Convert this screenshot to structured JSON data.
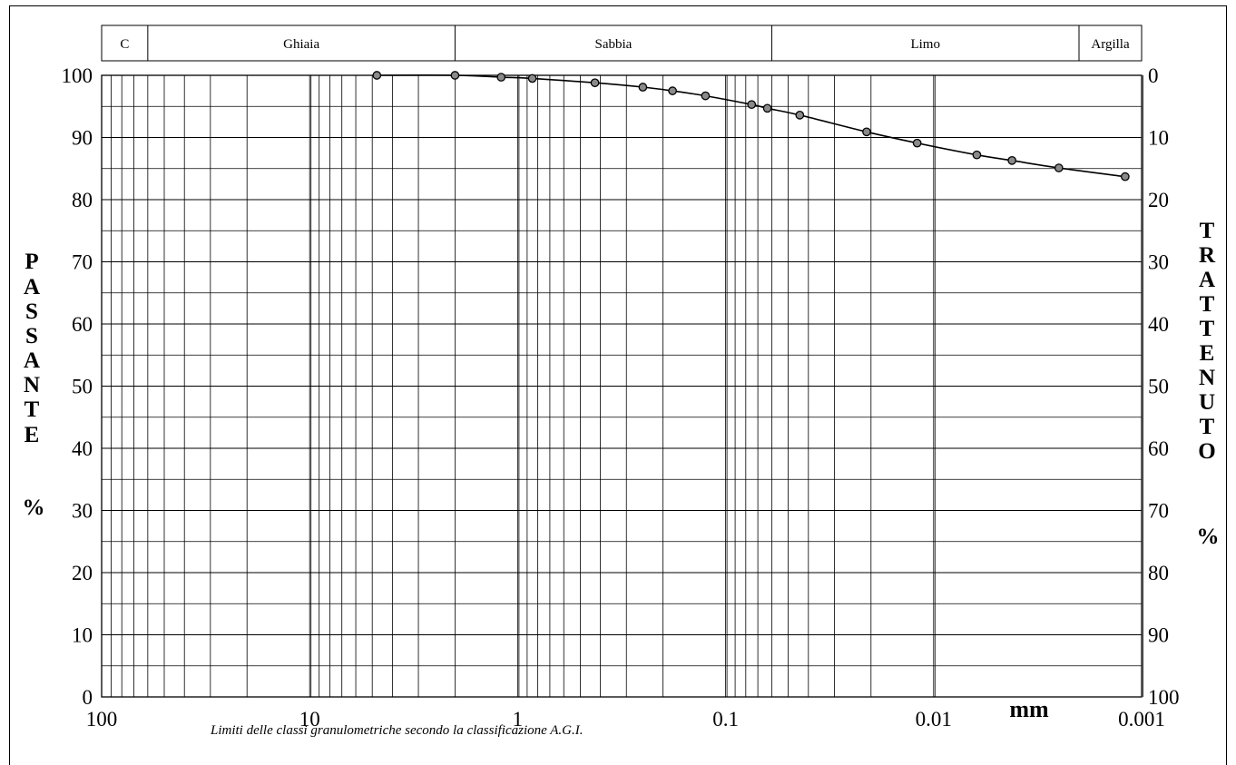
{
  "chart_data": {
    "type": "line",
    "xscale": "log",
    "xreversed": true,
    "xlim": [
      100,
      0.001
    ],
    "ylim": [
      0,
      100
    ],
    "ylabel": "PASSANTE",
    "ylabel_unit": "%",
    "y2label": "TRATTENUTO",
    "y2label_unit": "%",
    "xlabel": "mm",
    "grid": true,
    "x_tick_labels": [
      "100",
      "10",
      "1",
      "0.1",
      "0.01",
      "0.001"
    ],
    "x_tick_values": [
      100,
      10,
      1,
      0.1,
      0.01,
      0.001
    ],
    "y_tick_labels": [
      "0",
      "10",
      "20",
      "30",
      "40",
      "50",
      "60",
      "70",
      "80",
      "90",
      "100"
    ],
    "y2_tick_labels": [
      "100",
      "90",
      "80",
      "70",
      "60",
      "50",
      "40",
      "30",
      "20",
      "10",
      "0"
    ],
    "classes": [
      {
        "label": "C",
        "from": 100,
        "to": 60
      },
      {
        "label": "Ghiaia",
        "from": 60,
        "to": 2
      },
      {
        "label": "Sabbia",
        "from": 2,
        "to": 0.06
      },
      {
        "label": "Limo",
        "from": 0.06,
        "to": 0.002
      },
      {
        "label": "Argilla",
        "from": 0.002,
        "to": 0.001
      }
    ],
    "caption": "Limiti delle classi granulometriche secondo la classificazione A.G.I.",
    "series": [
      {
        "x": [
          4.75,
          2,
          1.2,
          0.85,
          0.425,
          0.25,
          0.18,
          0.125,
          0.075,
          0.063,
          0.044,
          0.021,
          0.012,
          0.0062,
          0.0042,
          0.0025,
          0.0012
        ],
        "y": [
          100,
          100,
          99.7,
          99.5,
          98.8,
          98.1,
          97.5,
          96.7,
          95.3,
          94.7,
          93.6,
          90.9,
          89.1,
          87.2,
          86.3,
          85.1,
          83.7
        ]
      }
    ]
  }
}
